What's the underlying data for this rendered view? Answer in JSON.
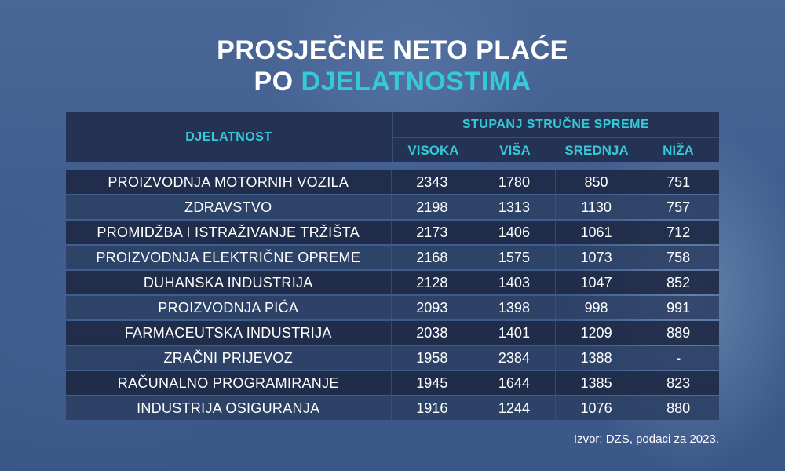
{
  "title": {
    "line1": "PROSJEČNE NETO PLAĆE",
    "line2_prefix": "PO ",
    "line2_accent": "DJELATNOSTIMA"
  },
  "colors": {
    "accent": "#36c9d9",
    "header_bg": "#243353",
    "row_dark": "#1b2742",
    "row_light": "#2c3e61",
    "background": "#3d5a8a"
  },
  "source": "Izvor: DZS, podaci za 2023.",
  "chart_data": {
    "type": "table",
    "title": "PROSJEČNE NETO PLAĆE PO DJELATNOSTIMA",
    "row_header": "DJELATNOST",
    "column_group": "STUPANJ STRUČNE SPREME",
    "columns": [
      "VISOKA",
      "VIŠA",
      "SREDNJA",
      "NIŽA"
    ],
    "rows": [
      {
        "label": "PROIZVODNJA MOTORNIH VOZILA",
        "values": [
          "2343",
          "1780",
          "850",
          "751"
        ]
      },
      {
        "label": "ZDRAVSTVO",
        "values": [
          "2198",
          "1313",
          "1130",
          "757"
        ]
      },
      {
        "label": "PROMIDŽBA I ISTRAŽIVANJE TRŽIŠTA",
        "values": [
          "2173",
          "1406",
          "1061",
          "712"
        ]
      },
      {
        "label": "PROIZVODNJA ELEKTRIČNE OPREME",
        "values": [
          "2168",
          "1575",
          "1073",
          "758"
        ]
      },
      {
        "label": "DUHANSKA INDUSTRIJA",
        "values": [
          "2128",
          "1403",
          "1047",
          "852"
        ]
      },
      {
        "label": "PROIZVODNJA PIĆA",
        "values": [
          "2093",
          "1398",
          "998",
          "991"
        ]
      },
      {
        "label": "FARMACEUTSKA INDUSTRIJA",
        "values": [
          "2038",
          "1401",
          "1209",
          "889"
        ]
      },
      {
        "label": "ZRAČNI PRIJEVOZ",
        "values": [
          "1958",
          "2384",
          "1388",
          "-"
        ]
      },
      {
        "label": "RAČUNALNO PROGRAMIRANJE",
        "values": [
          "1945",
          "1644",
          "1385",
          "823"
        ]
      },
      {
        "label": "INDUSTRIJA OSIGURANJA",
        "values": [
          "1916",
          "1244",
          "1076",
          "880"
        ]
      }
    ]
  }
}
